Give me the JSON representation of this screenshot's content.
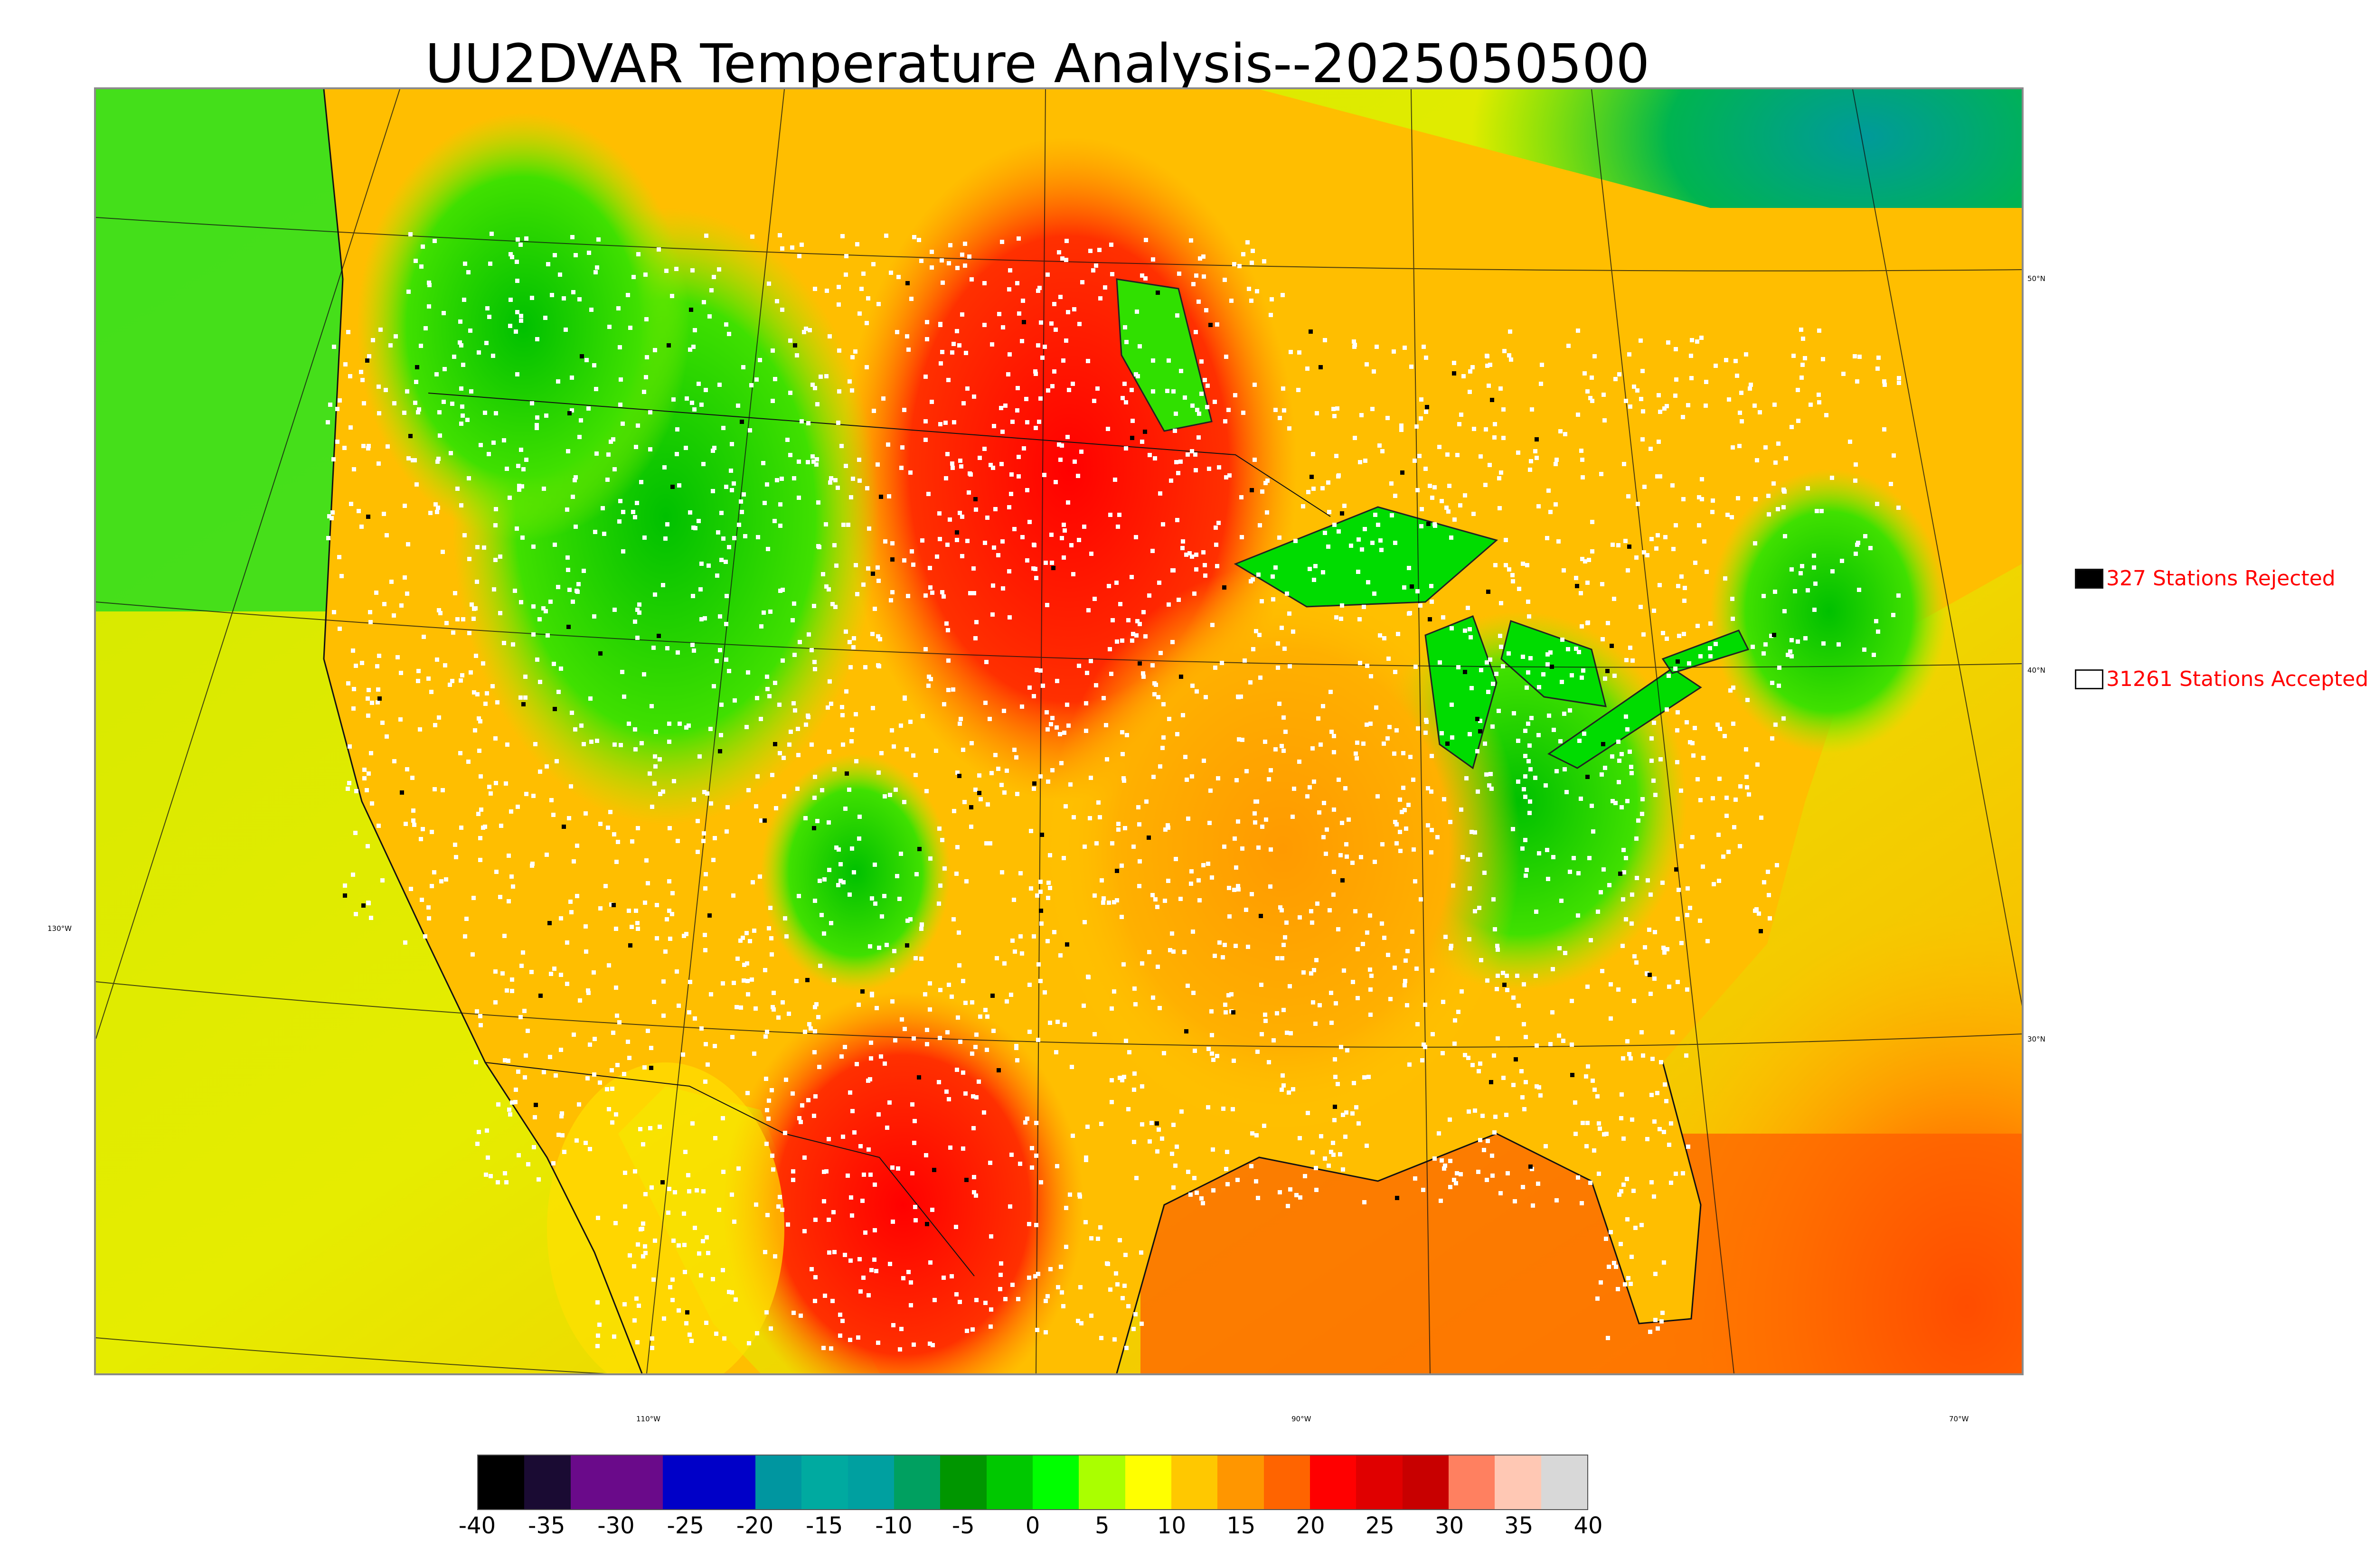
{
  "title": "UU2DVAR Temperature Analysis--2025050500",
  "map": {
    "lat_labels": [
      "50°N",
      "40°N",
      "30°N"
    ],
    "lon_labels_left": [
      "130°W"
    ],
    "lon_labels_bottom": [
      "110°W",
      "90°W",
      "70°W"
    ]
  },
  "legend": {
    "rejected": {
      "label": "327 Stations Rejected",
      "color": "#000000"
    },
    "accepted": {
      "label": "31261 Stations Accepted",
      "color": "#ffffff"
    }
  },
  "colorbar": {
    "ticks": [
      "-40",
      "-35",
      "-30",
      "-25",
      "-20",
      "-15",
      "-10",
      "-5",
      "0",
      "5",
      "10",
      "15",
      "20",
      "25",
      "30",
      "35",
      "40"
    ],
    "min": -40,
    "max": 40,
    "colors": [
      "#000000",
      "#1a0b33",
      "#6a0a8a",
      "#6a0a8a",
      "#0000c8",
      "#0000c8",
      "#0096a0",
      "#00aaa0",
      "#00a0a0",
      "#00a060",
      "#009600",
      "#00c800",
      "#00ff00",
      "#aaff00",
      "#ffff00",
      "#ffc800",
      "#ff9600",
      "#ff6400",
      "#ff0000",
      "#e00000",
      "#c80000",
      "#ff8060",
      "#ffc8b4",
      "#d8d8d8"
    ]
  }
}
